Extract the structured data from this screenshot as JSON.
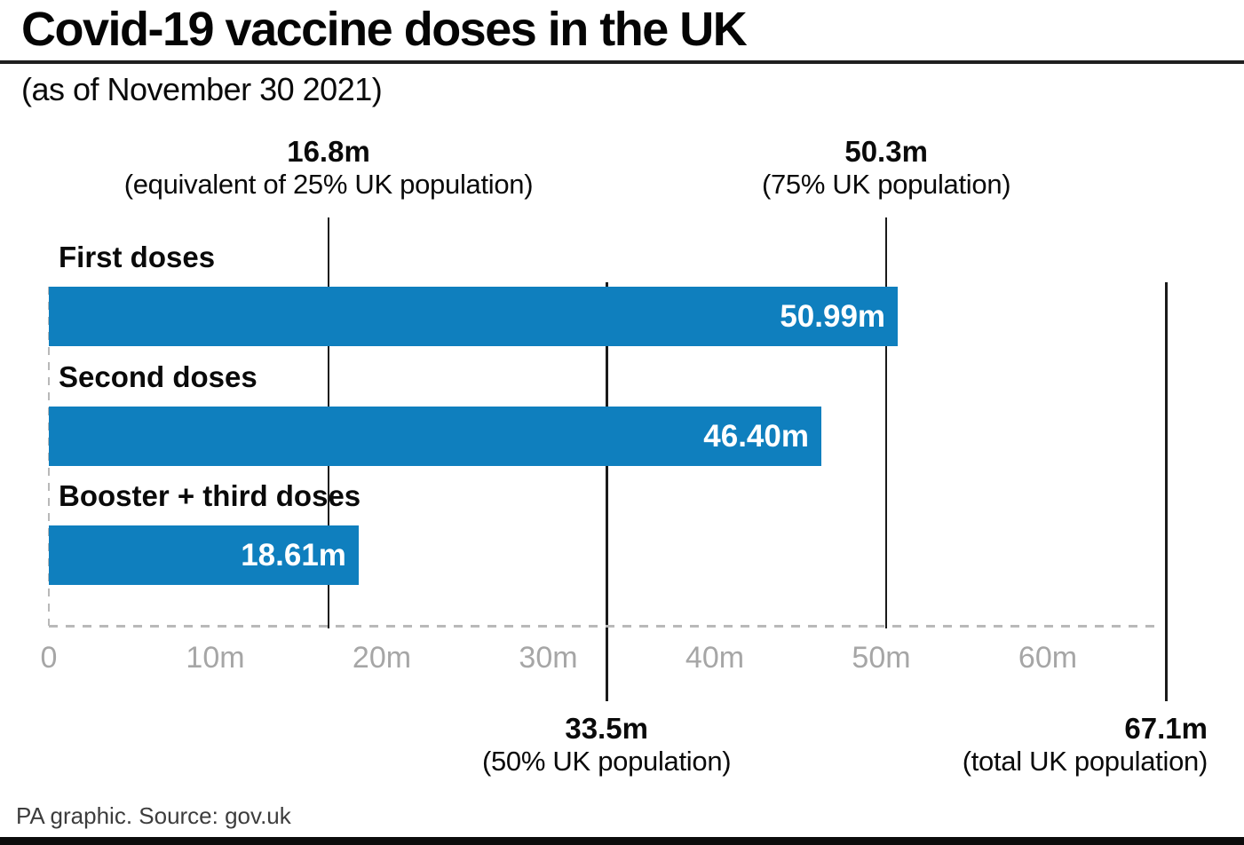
{
  "header": {
    "title": "Covid-19 vaccine doses in the UK",
    "subtitle": "(as of November 30 2021)"
  },
  "footer": {
    "credit": "PA graphic. Source: gov.uk"
  },
  "colors": {
    "bar_blue": "#0f7fbe",
    "reference_line": "#1a1a1a",
    "axis_gray": "#a6a6a6",
    "dash_gray": "#b9b9b9"
  },
  "chart_data": {
    "type": "bar",
    "orientation": "horizontal",
    "title": "Covid-19 vaccine doses in the UK",
    "subtitle": "(as of November 30 2021)",
    "xlabel": "",
    "ylabel": "",
    "unit": "million doses",
    "xlim": [
      0,
      69.5
    ],
    "grid": false,
    "categories": [
      "First doses",
      "Second doses",
      "Booster + third doses"
    ],
    "values": [
      50.99,
      46.4,
      18.61
    ],
    "value_labels": [
      "50.99m",
      "46.40m",
      "18.61m"
    ],
    "x_ticks": [
      {
        "value": 0,
        "label": "0"
      },
      {
        "value": 10,
        "label": "10m"
      },
      {
        "value": 20,
        "label": "20m"
      },
      {
        "value": 30,
        "label": "30m"
      },
      {
        "value": 40,
        "label": "40m"
      },
      {
        "value": 50,
        "label": "50m"
      },
      {
        "value": 60,
        "label": "60m"
      }
    ],
    "reference_lines": [
      {
        "value": 16.8,
        "label": "16.8m",
        "description": "(equivalent of 25% UK population)",
        "label_position": "top",
        "align": "center"
      },
      {
        "value": 50.3,
        "label": "50.3m",
        "description": "(75% UK population)",
        "label_position": "top",
        "align": "center"
      },
      {
        "value": 33.5,
        "label": "33.5m",
        "description": "(50% UK population)",
        "label_position": "bottom",
        "align": "center"
      },
      {
        "value": 67.1,
        "label": "67.1m",
        "description": "(total UK population)",
        "label_position": "bottom",
        "align": "right"
      }
    ]
  }
}
